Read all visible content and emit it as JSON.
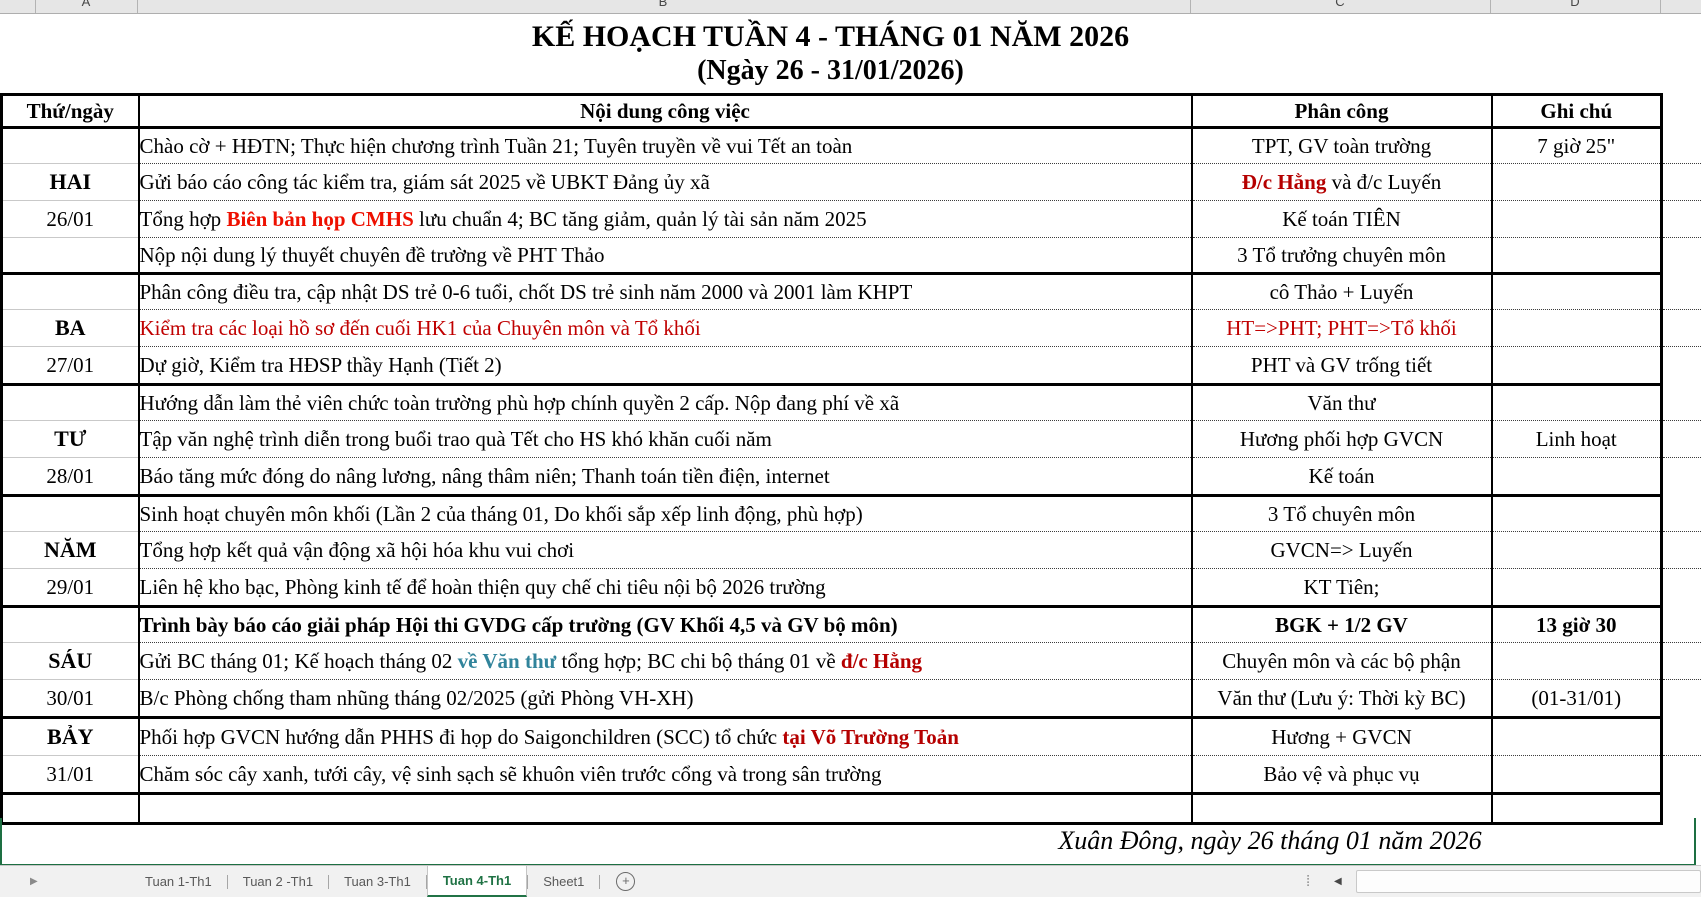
{
  "column_strip": {
    "letters": [
      "A",
      "B",
      "C",
      "D"
    ]
  },
  "title": {
    "line1": "KẾ HOẠCH TUẦN 4 - THÁNG 01 NĂM 2026",
    "line2": "(Ngày 26 - 31/01/2026)"
  },
  "table": {
    "headers": [
      "Thứ/ngày",
      "Nội dung công việc",
      "Phân công",
      "Ghi chú"
    ],
    "groups": [
      {
        "day": "HAI",
        "date": "26/01",
        "rows": [
          {
            "content": [
              {
                "t": "Chào cờ + HĐTN; Thực hiện chương trình Tuần 21; Tuyên truyền về vui Tết an toàn",
                "s": ""
              }
            ],
            "assign": [
              {
                "t": "TPT, GV toàn trường",
                "s": ""
              }
            ],
            "note": [
              {
                "t": "7 giờ 25\"",
                "s": ""
              }
            ]
          },
          {
            "content": [
              {
                "t": "Gửi báo cáo công tác kiểm tra, giám sát 2025 về UBKT Đảng ủy xã",
                "s": ""
              }
            ],
            "assign": [
              {
                "t": "Đ/c Hằng",
                "s": "rb"
              },
              {
                "t": " và đ/c Luyến",
                "s": ""
              }
            ],
            "note": []
          },
          {
            "content": [
              {
                "t": "Tổng hợp ",
                "s": ""
              },
              {
                "t": "Biên bản họp CMHS",
                "s": "br"
              },
              {
                "t": " lưu chuẩn 4; BC tăng giảm, quản lý tài sản năm 2025",
                "s": ""
              }
            ],
            "assign": [
              {
                "t": "Kế toán TIÊN",
                "s": ""
              }
            ],
            "note": []
          },
          {
            "content": [
              {
                "t": "Nộp nội dung lý thuyết chuyên đề trường về PHT Thảo",
                "s": ""
              }
            ],
            "assign": [
              {
                "t": "3 Tổ trưởng chuyên môn",
                "s": ""
              }
            ],
            "note": []
          }
        ]
      },
      {
        "day": "BA",
        "date": "27/01",
        "rows": [
          {
            "content": [
              {
                "t": "Phân công điều tra, cập nhật DS trẻ 0-6 tuổi, chốt DS trẻ sinh năm 2000 và 2001 làm KHPT",
                "s": ""
              }
            ],
            "assign": [
              {
                "t": "cô Thảo + Luyến",
                "s": ""
              }
            ],
            "note": []
          },
          {
            "content": [
              {
                "t": "Kiểm tra các loại hồ sơ đến cuối HK1 của Chuyên môn và Tổ khối",
                "s": "r"
              }
            ],
            "assign": [
              {
                "t": "HT=>PHT; PHT=>Tổ khối",
                "s": "r"
              }
            ],
            "note": []
          },
          {
            "content": [
              {
                "t": "Dự giờ, Kiểm tra HĐSP thầy Hạnh (Tiết 2)",
                "s": ""
              }
            ],
            "assign": [
              {
                "t": "PHT và GV trống tiết",
                "s": ""
              }
            ],
            "note": []
          }
        ]
      },
      {
        "day": "TƯ",
        "date": "28/01",
        "rows": [
          {
            "content": [
              {
                "t": "Hướng dẫn làm thẻ viên chức toàn trường phù hợp chính quyền 2 cấp. Nộp đang phí về xã",
                "s": ""
              }
            ],
            "assign": [
              {
                "t": "Văn thư",
                "s": ""
              }
            ],
            "note": []
          },
          {
            "content": [
              {
                "t": "Tập văn nghệ trình diễn trong buổi trao quà Tết cho HS khó khăn cuối năm",
                "s": ""
              }
            ],
            "assign": [
              {
                "t": "Hương phối hợp GVCN",
                "s": ""
              }
            ],
            "note": [
              {
                "t": "Linh hoạt",
                "s": ""
              }
            ]
          },
          {
            "content": [
              {
                "t": "Báo tăng mức đóng do nâng lương, nâng thâm niên; Thanh toán tiền điện, internet",
                "s": ""
              }
            ],
            "assign": [
              {
                "t": "Kế toán",
                "s": ""
              }
            ],
            "note": []
          }
        ]
      },
      {
        "day": "NĂM",
        "date": "29/01",
        "rows": [
          {
            "content": [
              {
                "t": "Sinh hoạt chuyên môn khối (Lần 2 của tháng 01, Do khối sắp xếp linh động, phù hợp)",
                "s": ""
              }
            ],
            "assign": [
              {
                "t": "3 Tổ chuyên môn",
                "s": ""
              }
            ],
            "note": []
          },
          {
            "content": [
              {
                "t": "Tổng hợp kết quả vận động xã hội hóa khu vui chơi",
                "s": ""
              }
            ],
            "assign": [
              {
                "t": "GVCN=> Luyến",
                "s": ""
              }
            ],
            "note": []
          },
          {
            "content": [
              {
                "t": "Liên hệ kho bạc, Phòng kinh tế để hoàn thiện quy chế chi tiêu nội bộ 2026 trường",
                "s": ""
              }
            ],
            "assign": [
              {
                "t": "KT Tiên;",
                "s": ""
              }
            ],
            "note": []
          }
        ]
      },
      {
        "day": "SÁU",
        "date": "30/01",
        "rows": [
          {
            "content": [
              {
                "t": "Trình bày báo cáo giải pháp Hội thi GVDG cấp trường (GV Khối 4,5 và GV bộ môn)",
                "s": "b"
              }
            ],
            "assign": [
              {
                "t": "BGK + 1/2 GV",
                "s": "b"
              }
            ],
            "note": [
              {
                "t": "13 giờ 30",
                "s": "b"
              }
            ]
          },
          {
            "content": [
              {
                "t": "Gửi BC tháng 01; Kế hoạch tháng 02 ",
                "s": ""
              },
              {
                "t": "về Văn thư",
                "s": "tb"
              },
              {
                "t": " tổng hợp; BC chi bộ tháng 01 về ",
                "s": ""
              },
              {
                "t": "đ/c Hằng",
                "s": "rb"
              }
            ],
            "assign": [
              {
                "t": "Chuyên môn và các bộ phận",
                "s": ""
              }
            ],
            "note": []
          },
          {
            "content": [
              {
                "t": "B/c Phòng chống tham nhũng tháng 02/2025 (gửi Phòng VH-XH)",
                "s": ""
              }
            ],
            "assign": [
              {
                "t": "Văn thư (Lưu ý: Thời kỳ BC)",
                "s": ""
              }
            ],
            "note": [
              {
                "t": "(01-31/01)",
                "s": ""
              }
            ]
          }
        ]
      },
      {
        "day": "BẢY",
        "date": "31/01",
        "rows": [
          {
            "content": [
              {
                "t": "Phối hợp GVCN hướng dẫn PHHS đi họp do Saigonchildren (SCC) tổ chức ",
                "s": ""
              },
              {
                "t": "tại Võ Trường Toản",
                "s": "rb"
              }
            ],
            "assign": [
              {
                "t": "Hương + GVCN",
                "s": ""
              }
            ],
            "note": []
          },
          {
            "content": [
              {
                "t": "Chăm sóc cây xanh, tưới cây, vệ sinh sạch sẽ khuôn viên trước cổng và trong sân trường",
                "s": ""
              }
            ],
            "assign": [
              {
                "t": "Bảo vệ và phục vụ",
                "s": ""
              }
            ],
            "note": []
          }
        ]
      }
    ]
  },
  "signature": {
    "text": "Xuân Đông, ngày 26 tháng 01 năm 2026"
  },
  "tabbar": {
    "nav_arrow": "▶",
    "tabs": [
      {
        "label": "Tuan 1-Th1",
        "active": false
      },
      {
        "label": "Tuan 2 -Th1",
        "active": false
      },
      {
        "label": "Tuan 3-Th1",
        "active": false
      },
      {
        "label": "Tuan 4-Th1",
        "active": true
      },
      {
        "label": "Sheet1",
        "active": false
      }
    ],
    "add_label": "+",
    "splitter_glyph": "⁞",
    "scroll_left_glyph": "◀"
  },
  "colors": {
    "accent_green": "#217346",
    "dark_red": "#b50000",
    "bright_red": "#ee1000",
    "teal": "#31849b"
  }
}
